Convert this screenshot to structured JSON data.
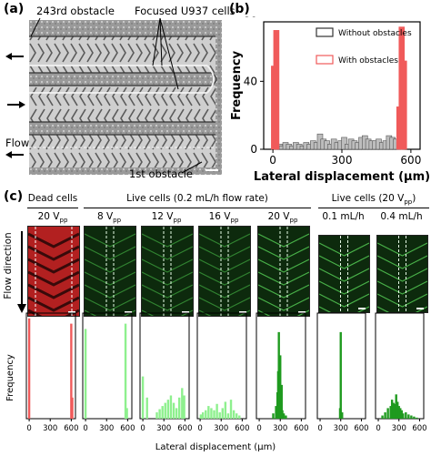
{
  "panel_a": {
    "label": "(a)",
    "annotations": {
      "obstacle_243": "243rd obstacle",
      "focused_cells": "Focused U937 cells",
      "flow": "Flow",
      "obstacle_1": "1st obstacle"
    },
    "channel_directions": [
      "left",
      "right",
      "left"
    ]
  },
  "panel_b": {
    "label": "(b)"
  },
  "panel_c": {
    "label": "(c)",
    "group_headers": {
      "dead": "Dead cells",
      "live_flow": "Live cells (0.2 mL/h flow rate)",
      "live_voltage": "Live cells (20 V",
      "live_voltage_sub": "pp",
      "live_voltage_end": ")"
    },
    "column_headers": [
      {
        "main": "20 V",
        "sub": "pp"
      },
      {
        "main": "8 V",
        "sub": "pp"
      },
      {
        "main": "12 V",
        "sub": "pp"
      },
      {
        "main": "16 V",
        "sub": "pp"
      },
      {
        "main": "20 V",
        "sub": "pp"
      },
      {
        "main": "0.1 mL/h",
        "sub": ""
      },
      {
        "main": "0.4 mL/h",
        "sub": ""
      }
    ],
    "flow_direction_label": "Flow direction"
  },
  "colors": {
    "red_bar": "#f05a5a",
    "gray_bar": "#8a8a8a",
    "light_green": "#8ef08e",
    "mid_green": "#48c248",
    "dark_green": "#1f9a1f",
    "dead_bg": "#b22020",
    "live_bg": "#0d2a0d"
  },
  "chart_data": [
    {
      "type": "bar",
      "id": "panel_b_histogram",
      "xlabel": "Lateral displacement (μm)",
      "ylabel": "Frequency",
      "xlim": [
        -40,
        640
      ],
      "ylim": [
        0,
        75
      ],
      "xticks": [
        0,
        300,
        600
      ],
      "yticks": [
        0,
        40,
        80
      ],
      "legend": "top-right",
      "series": [
        {
          "name": "Without obstacles",
          "color": "#8a8a8a",
          "style": "outline",
          "x": [
            30,
            40,
            55,
            70,
            85,
            100,
            115,
            130,
            145,
            160,
            175,
            190,
            205,
            220,
            235,
            250,
            265,
            280,
            295,
            310,
            325,
            340,
            355,
            370,
            385,
            400,
            415,
            430,
            445,
            460,
            475,
            490,
            505,
            520,
            535,
            550
          ],
          "values": [
            3,
            2,
            4,
            3,
            2,
            4,
            3,
            2,
            4,
            3,
            5,
            4,
            9,
            6,
            5,
            3,
            6,
            4,
            5,
            7,
            3,
            6,
            5,
            4,
            7,
            8,
            6,
            5,
            5,
            6,
            4,
            5,
            8,
            7,
            6,
            4
          ]
        },
        {
          "name": "With obstacles",
          "color": "#f05a5a",
          "style": "filled",
          "x": [
            5,
            15,
            550,
            560,
            570
          ],
          "values": [
            49,
            70,
            25,
            72,
            52
          ]
        }
      ]
    },
    {
      "type": "bar",
      "id": "panel_c_histograms",
      "xlabel": "Lateral displacement (μm)",
      "ylabel": "Frequency",
      "xlim": [
        -40,
        660
      ],
      "xticks": [
        0,
        300,
        600
      ],
      "panels": [
        {
          "color": "#f05a5a",
          "x": [
            0,
            600,
            615
          ],
          "values": [
            95,
            90,
            20
          ]
        },
        {
          "color": "#8ef08e",
          "x": [
            0,
            570,
            590
          ],
          "values": [
            85,
            90,
            10
          ]
        },
        {
          "color": "#8ef08e",
          "x": [
            0,
            60,
            200,
            240,
            280,
            320,
            360,
            400,
            440,
            480,
            520,
            560,
            590
          ],
          "values": [
            40,
            20,
            6,
            9,
            12,
            15,
            18,
            22,
            15,
            10,
            20,
            29,
            22
          ]
        },
        {
          "color": "#8ef08e",
          "x": [
            10,
            40,
            80,
            120,
            160,
            200,
            240,
            280,
            320,
            360,
            400,
            440,
            480,
            520,
            560
          ],
          "values": [
            4,
            6,
            8,
            12,
            10,
            8,
            14,
            6,
            10,
            16,
            5,
            18,
            8,
            5,
            3
          ]
        },
        {
          "color": "#1f9a1f",
          "x": [
            200,
            240,
            260,
            270,
            280,
            290,
            300,
            310,
            320,
            330,
            350,
            380
          ],
          "values": [
            5,
            12,
            25,
            45,
            82,
            20,
            60,
            12,
            32,
            8,
            5,
            3
          ]
        },
        {
          "color": "#1f9a1f",
          "x": [
            290,
            300,
            320
          ],
          "values": [
            10,
            82,
            6
          ]
        },
        {
          "color": "#1f9a1f",
          "x": [
            60,
            100,
            140,
            180,
            200,
            220,
            240,
            260,
            280,
            300,
            320,
            340,
            360,
            400,
            440,
            480,
            520,
            560
          ],
          "values": [
            3,
            6,
            10,
            12,
            18,
            15,
            14,
            23,
            16,
            12,
            10,
            8,
            5,
            6,
            4,
            3,
            2,
            1
          ]
        }
      ]
    }
  ]
}
